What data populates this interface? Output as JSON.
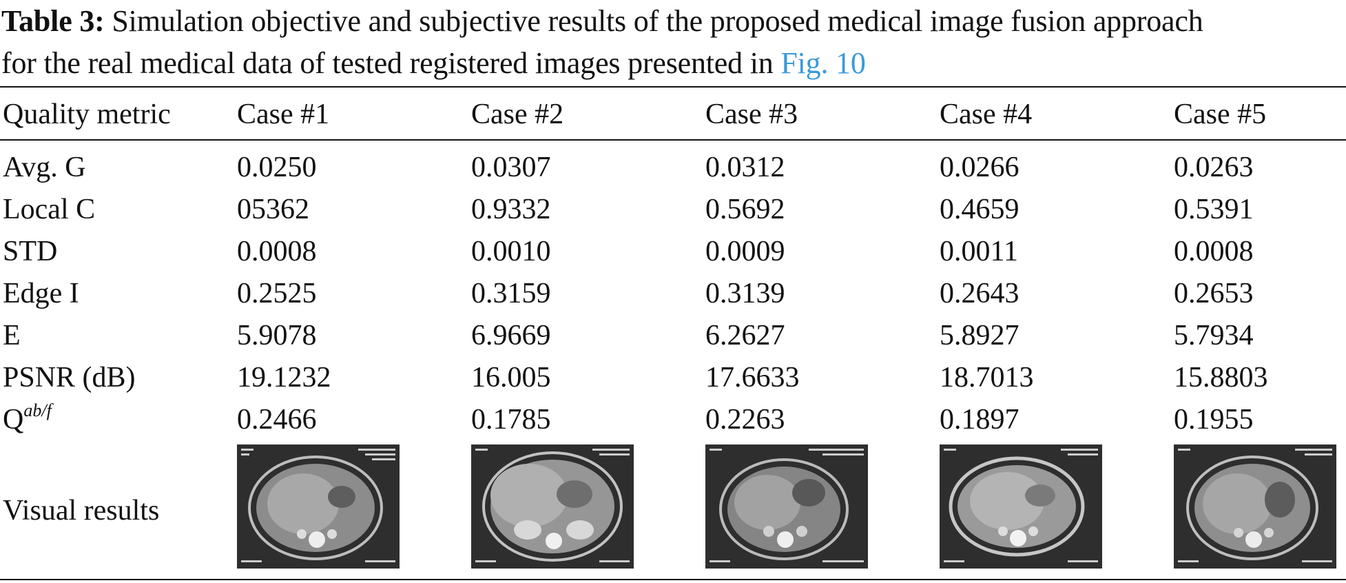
{
  "caption": {
    "label": "Table 3:",
    "line1": " Simulation objective and subjective results of the proposed medical image fusion approach",
    "line2": "for the real medical data of tested registered images presented in ",
    "fig_ref": "Fig. 10"
  },
  "table": {
    "headers": [
      "Quality metric",
      "Case #1",
      "Case #2",
      "Case #3",
      "Case #4",
      "Case #5"
    ],
    "rows": [
      {
        "metric": "Avg. G",
        "values": [
          "0.0250",
          "0.0307",
          "0.0312",
          "0.0266",
          "0.0263"
        ]
      },
      {
        "metric": "Local C",
        "values": [
          "05362",
          "0.9332",
          "0.5692",
          "0.4659",
          "0.5391"
        ]
      },
      {
        "metric": "STD",
        "values": [
          "0.0008",
          "0.0010",
          "0.0009",
          "0.0011",
          "0.0008"
        ]
      },
      {
        "metric": "Edge I",
        "values": [
          "0.2525",
          "0.3159",
          "0.3139",
          "0.2643",
          "0.2653"
        ]
      },
      {
        "metric": "E",
        "values": [
          "5.9078",
          "6.9669",
          "6.2627",
          "5.8927",
          "5.7934"
        ]
      },
      {
        "metric": "PSNR (dB)",
        "values": [
          "19.1232",
          "16.005",
          "17.6633",
          "18.7013",
          "15.8803"
        ]
      },
      {
        "metric": "Q",
        "metric_sup": "ab/f",
        "values": [
          "0.2466",
          "0.1785",
          "0.2263",
          "0.1897",
          "0.1955"
        ]
      }
    ],
    "visual_label": "Visual results"
  },
  "colors": {
    "text": "#111111",
    "link": "#3a9ad9",
    "thumbnail_bg": "#2e2e2e"
  }
}
